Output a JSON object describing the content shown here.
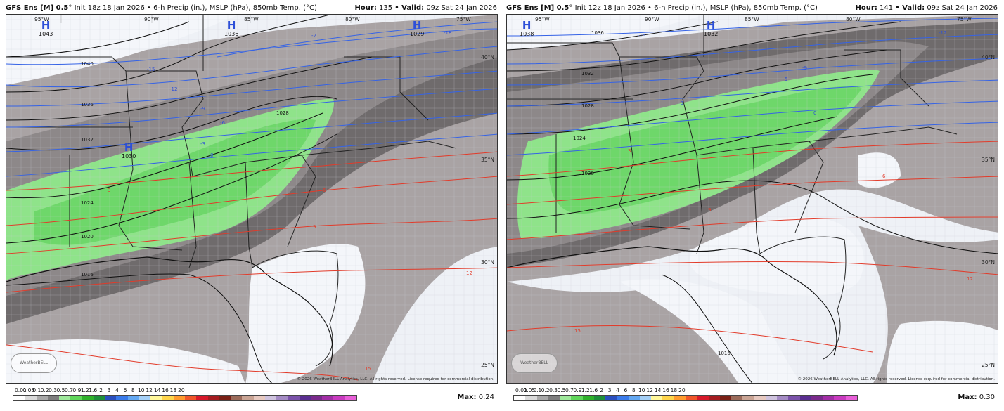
{
  "panels": [
    {
      "title_bold": "GFS Ens [M] 0.5",
      "title_rest": "° Init 18z 18 Jan 2026 • 6-h Precip (in.), MSLP (hPa), 850mb Temp. (°C)",
      "hour_label": "Hour:",
      "hour_value": "135",
      "valid_label": "• Valid:",
      "valid_value": "09z Sat 24 Jan 2026",
      "max_label": "Max:",
      "max_value": "0.24",
      "copyright": "© 2026 WeatherBELL Analytics, LLC. All rights reserved. License required for commercial distribution.",
      "logo": "WeatherBELL",
      "lon_labels": [
        "95°W",
        "90°W",
        "85°W",
        "80°W",
        "75°W"
      ],
      "lat_labels": [
        "40°N",
        "35°N",
        "30°N",
        "25°N"
      ],
      "highs": [
        {
          "letter": "H",
          "value": "1043"
        },
        {
          "letter": "H",
          "value": "1036"
        },
        {
          "letter": "H",
          "value": "1029"
        },
        {
          "letter": "H",
          "value": "1030"
        }
      ],
      "isobar_labels": [
        "1040",
        "1036",
        "1032",
        "1028",
        "1024",
        "1020",
        "1016"
      ],
      "temp_labels_blue": [
        "-21",
        "-18",
        "-15",
        "-12",
        "-9",
        "-6",
        "-3",
        "0"
      ],
      "temp_labels_red": [
        "3",
        "6",
        "9",
        "12",
        "15"
      ]
    },
    {
      "title_bold": "GFS Ens [M] 0.5",
      "title_rest": "° Init 12z 18 Jan 2026 • 6-h Precip (in.), MSLP (hPa), 850mb Temp. (°C)",
      "hour_label": "Hour:",
      "hour_value": "141",
      "valid_label": "• Valid:",
      "valid_value": "09z Sat 24 Jan 2026",
      "max_label": "Max:",
      "max_value": "0.30",
      "copyright": "© 2026 WeatherBELL Analytics, LLC. All rights reserved. License required for commercial distribution.",
      "logo": "WeatherBELL",
      "lon_labels": [
        "95°W",
        "90°W",
        "85°W",
        "80°W",
        "75°W"
      ],
      "lat_labels": [
        "40°N",
        "35°N",
        "30°N",
        "25°N"
      ],
      "highs": [
        {
          "letter": "H",
          "value": "1038"
        },
        {
          "letter": "H",
          "value": "1032"
        }
      ],
      "isobar_labels": [
        "1036",
        "1032",
        "1028",
        "1024",
        "1020",
        "1016"
      ],
      "temp_labels_blue": [
        "-15",
        "-12",
        "-9",
        "-6",
        "-3",
        "0"
      ],
      "temp_labels_red": [
        "3",
        "6",
        "9",
        "12",
        "15"
      ]
    }
  ],
  "colorbar": {
    "labels": [
      "0.01",
      "0.05",
      "0.1",
      "0.2",
      "0.3",
      "0.5",
      "0.7",
      "0.9",
      "1.2",
      "1.6",
      "2",
      "3",
      "4",
      "6",
      "8",
      "10",
      "12",
      "14",
      "16",
      "18",
      "20"
    ],
    "colors": [
      "#ffffff",
      "#d9d9d9",
      "#a8a8a8",
      "#7d7d7d",
      "#9ee89a",
      "#5fd65a",
      "#2fb22b",
      "#1e8f3a",
      "#2a4fbf",
      "#3a7bea",
      "#63a8f2",
      "#a5d0f7",
      "#fff79a",
      "#ffd54a",
      "#ff9b2e",
      "#f0562a",
      "#d7192a",
      "#a51c20",
      "#7a2016",
      "#9b6b5a",
      "#c9a494",
      "#e7c9c0",
      "#cfc3de",
      "#a48bc4",
      "#7b52aa",
      "#5a2e90",
      "#7a2a8c",
      "#a22ea6",
      "#c93bc0",
      "#e85fd8"
    ]
  }
}
